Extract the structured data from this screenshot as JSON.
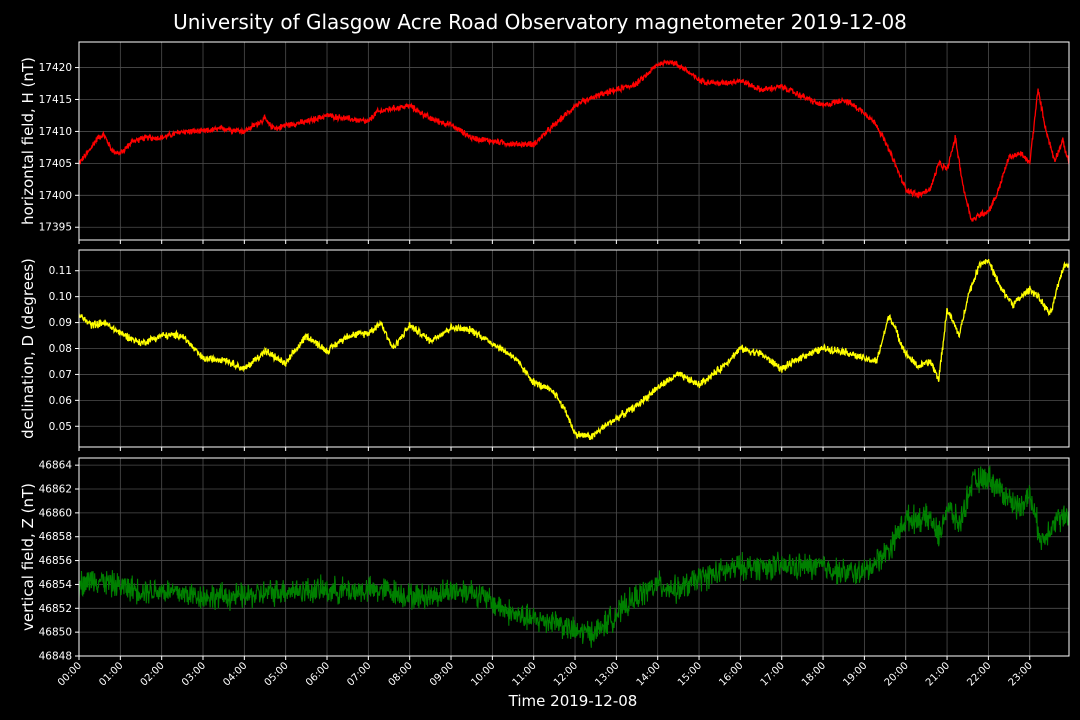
{
  "chart_data": {
    "type": "line",
    "title": "University of Glasgow Acre Road Observatory magnetometer 2019-12-08",
    "xlabel": "Time 2019-12-08",
    "x_ticks": [
      "00:00",
      "01:00",
      "02:00",
      "03:00",
      "04:00",
      "05:00",
      "06:00",
      "07:00",
      "08:00",
      "09:00",
      "10:00",
      "11:00",
      "12:00",
      "13:00",
      "14:00",
      "15:00",
      "16:00",
      "17:00",
      "18:00",
      "19:00",
      "20:00",
      "21:00",
      "22:00",
      "23:00"
    ],
    "xlim_hours": [
      0,
      23.95
    ],
    "grid": true,
    "panels": [
      {
        "ylabel": "horizontal field, H (nT)",
        "color": "#ff0000",
        "ylim": [
          17393,
          17424
        ],
        "yticks": [
          17395,
          17400,
          17405,
          17410,
          17415,
          17420
        ],
        "ytick_labels": [
          "17395",
          "17400",
          "17405",
          "17410",
          "17415",
          "17420"
        ],
        "noise": 0.4,
        "x": [
          0,
          0.25,
          0.45,
          0.6,
          0.8,
          1.0,
          1.3,
          1.6,
          2.0,
          2.5,
          3.0,
          3.5,
          4.0,
          4.5,
          4.6,
          4.8,
          5.0,
          5.5,
          6.0,
          6.5,
          7.0,
          7.2,
          7.5,
          8.0,
          8.5,
          9.0,
          9.5,
          10.0,
          10.5,
          11.0,
          11.5,
          12.0,
          12.5,
          13.0,
          13.5,
          14.0,
          14.3,
          14.6,
          15.0,
          15.5,
          16.0,
          16.5,
          17.0,
          17.5,
          18.0,
          18.5,
          19.0,
          19.3,
          19.6,
          20.0,
          20.3,
          20.6,
          20.8,
          21.0,
          21.2,
          21.4,
          21.6,
          21.8,
          22.0,
          22.2,
          22.5,
          22.8,
          23.0,
          23.2,
          23.4,
          23.6,
          23.8,
          23.95
        ],
        "y": [
          17405,
          17407,
          17409,
          17409.5,
          17407,
          17406.5,
          17408.5,
          17409,
          17409,
          17410,
          17410,
          17410.5,
          17410,
          17412,
          17411,
          17410.5,
          17411,
          17411.5,
          17412.5,
          17412,
          17411.5,
          17413,
          17413.5,
          17414,
          17412,
          17411,
          17409,
          17408.5,
          17408,
          17408,
          17411,
          17414,
          17415.5,
          17416.5,
          17417.5,
          17420.5,
          17421,
          17420,
          17418,
          17417.5,
          17418,
          17416.5,
          17417,
          17415.5,
          17414,
          17415,
          17413,
          17411,
          17407,
          17401,
          17400,
          17401,
          17405,
          17404,
          17409,
          17401,
          17396,
          17397,
          17397.5,
          17400,
          17406,
          17406.5,
          17405,
          17416.5,
          17410,
          17405.5,
          17408.5,
          17405
        ]
      },
      {
        "ylabel": "declination, D (degrees)",
        "color": "#ffff00",
        "ylim": [
          0.042,
          0.118
        ],
        "yticks": [
          0.05,
          0.06,
          0.07,
          0.08,
          0.09,
          0.1,
          0.11
        ],
        "ytick_labels": [
          "0.05",
          "0.06",
          "0.07",
          "0.08",
          "0.09",
          "0.10",
          "0.11"
        ],
        "noise": 0.0012,
        "x": [
          0,
          0.3,
          0.6,
          1.0,
          1.5,
          2.0,
          2.5,
          3.0,
          3.5,
          4.0,
          4.5,
          5.0,
          5.5,
          6.0,
          6.5,
          7.0,
          7.3,
          7.6,
          8.0,
          8.5,
          9.0,
          9.5,
          10.0,
          10.5,
          11.0,
          11.5,
          11.8,
          12.0,
          12.4,
          12.8,
          13.2,
          13.5,
          14.0,
          14.5,
          15.0,
          15.5,
          16.0,
          16.5,
          17.0,
          17.5,
          18.0,
          18.5,
          19.0,
          19.3,
          19.6,
          20.0,
          20.3,
          20.6,
          20.8,
          21.0,
          21.3,
          21.5,
          21.8,
          22.0,
          22.3,
          22.6,
          23.0,
          23.2,
          23.5,
          23.8,
          23.95
        ],
        "y": [
          0.093,
          0.089,
          0.09,
          0.086,
          0.082,
          0.085,
          0.085,
          0.076,
          0.076,
          0.072,
          0.079,
          0.074,
          0.085,
          0.079,
          0.085,
          0.086,
          0.09,
          0.08,
          0.089,
          0.083,
          0.088,
          0.087,
          0.082,
          0.077,
          0.067,
          0.063,
          0.055,
          0.047,
          0.046,
          0.051,
          0.055,
          0.058,
          0.065,
          0.07,
          0.066,
          0.072,
          0.08,
          0.078,
          0.072,
          0.077,
          0.08,
          0.079,
          0.076,
          0.075,
          0.093,
          0.078,
          0.073,
          0.075,
          0.068,
          0.095,
          0.085,
          0.1,
          0.113,
          0.114,
          0.103,
          0.097,
          0.103,
          0.1,
          0.093,
          0.111,
          0.113
        ]
      },
      {
        "ylabel": "vertical field, Z (nT)",
        "color": "#008000",
        "ylim": [
          46848,
          46864.6
        ],
        "yticks": [
          46848,
          46850,
          46852,
          46854,
          46856,
          46858,
          46860,
          46862,
          46864
        ],
        "ytick_labels": [
          "46848",
          "46850",
          "46852",
          "46854",
          "46856",
          "46858",
          "46860",
          "46862",
          "46864"
        ],
        "noise": 0.9,
        "x": [
          0,
          0.4,
          0.8,
          1.5,
          2.0,
          3.0,
          4.0,
          5.0,
          6.0,
          7.0,
          7.5,
          8.0,
          8.5,
          9.0,
          9.5,
          10.0,
          10.5,
          11.0,
          11.5,
          12.0,
          12.5,
          13.0,
          13.5,
          14.0,
          14.5,
          15.0,
          15.5,
          16.0,
          16.5,
          17.0,
          17.5,
          18.0,
          18.5,
          19.0,
          19.3,
          19.6,
          20.0,
          20.3,
          20.6,
          20.8,
          21.0,
          21.3,
          21.6,
          22.0,
          22.4,
          22.7,
          23.0,
          23.3,
          23.6,
          23.95
        ],
        "y": [
          46854,
          46854.5,
          46854,
          46853.5,
          46853.5,
          46853,
          46853,
          46853.5,
          46853.5,
          46853.5,
          46853.5,
          46853,
          46853,
          46853.5,
          46853.5,
          46852.5,
          46851.5,
          46851,
          46851,
          46850,
          46850,
          46851.5,
          46853,
          46854,
          46853.5,
          46854.5,
          46855,
          46855.5,
          46855.5,
          46855.5,
          46855.5,
          46855.5,
          46855,
          46855,
          46856,
          46857,
          46859.5,
          46859.5,
          46859.5,
          46858,
          46860.5,
          46859,
          46862.5,
          46863,
          46861.5,
          46860.5,
          46861.5,
          46857.5,
          46859.5,
          46859.5
        ]
      }
    ]
  }
}
